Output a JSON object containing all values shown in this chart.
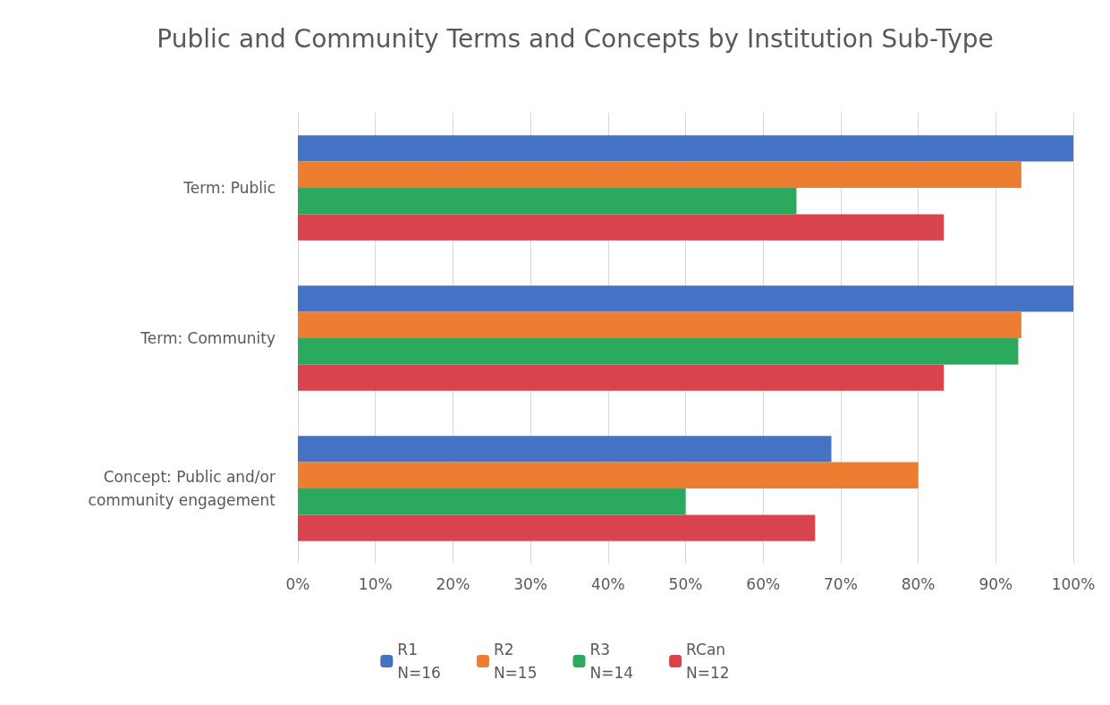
{
  "chart_data": {
    "type": "bar",
    "orientation": "horizontal",
    "title": "Public and Community Terms and Concepts by Institution Sub-Type",
    "categories": [
      "Term: Public",
      "Term: Community",
      "Concept: Public and/or community engagement"
    ],
    "series": [
      {
        "name": "R1\nN=16",
        "color": "#4472c4",
        "values": [
          100,
          100,
          68.8
        ]
      },
      {
        "name": "R2\nN=15",
        "color": "#ed7d31",
        "values": [
          93.3,
          93.3,
          80
        ]
      },
      {
        "name": "R3\nN=14",
        "color": "#2aa95f",
        "values": [
          64.3,
          92.9,
          50
        ]
      },
      {
        "name": "RCan\nN=12",
        "color": "#d9434e",
        "values": [
          83.3,
          83.3,
          66.7
        ]
      }
    ],
    "xlim": [
      0,
      100
    ],
    "xticks": [
      {
        "value": 0,
        "label": "0%"
      },
      {
        "value": 10,
        "label": "10%"
      },
      {
        "value": 20,
        "label": "20%"
      },
      {
        "value": 30,
        "label": "30%"
      },
      {
        "value": 40,
        "label": "40%"
      },
      {
        "value": 50,
        "label": "50%"
      },
      {
        "value": 60,
        "label": "60%"
      },
      {
        "value": 70,
        "label": "70%"
      },
      {
        "value": 80,
        "label": "80%"
      },
      {
        "value": 90,
        "label": "90%"
      },
      {
        "value": 100,
        "label": "100%"
      }
    ],
    "grid": "x",
    "legend": "bottom"
  }
}
